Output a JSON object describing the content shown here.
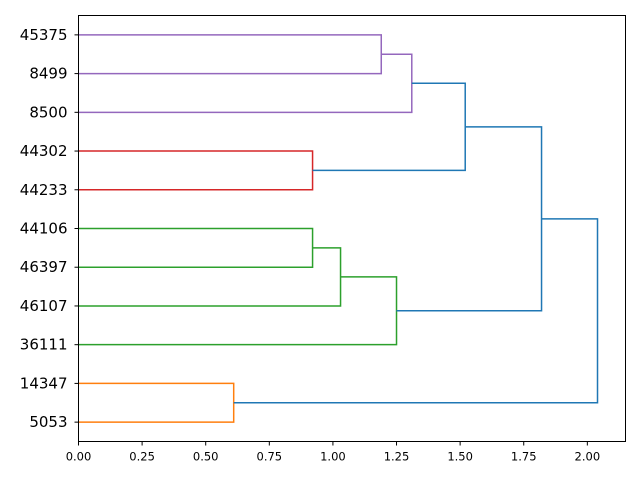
{
  "chart_data": {
    "type": "dendrogram",
    "orientation": "horizontal",
    "title": "",
    "xlabel": "",
    "ylabel": "",
    "xlim": [
      0,
      2.15
    ],
    "xticks": [
      "0.00",
      "0.25",
      "0.50",
      "0.75",
      "1.00",
      "1.25",
      "1.50",
      "1.75",
      "2.00"
    ],
    "xtick_values": [
      0,
      0.25,
      0.5,
      0.75,
      1.0,
      1.25,
      1.5,
      1.75,
      2.0
    ],
    "leaves": [
      "45375",
      "8499",
      "8500",
      "44302",
      "44233",
      "44106",
      "46397",
      "46107",
      "36111",
      "14347",
      "5053"
    ],
    "grid": false,
    "colors": {
      "purple": "#9467bd",
      "red": "#d62728",
      "green": "#2ca02c",
      "orange": "#ff7f0e",
      "blue": "#1f77b4"
    },
    "merges": [
      {
        "id": "m1",
        "a": "45375",
        "b": "8499",
        "height": 1.19,
        "color": "purple"
      },
      {
        "id": "m2",
        "a": "m1",
        "b": "8500",
        "height": 1.31,
        "color": "purple"
      },
      {
        "id": "m3",
        "a": "44302",
        "b": "44233",
        "height": 0.92,
        "color": "red"
      },
      {
        "id": "m4",
        "a": "m2",
        "b": "m3",
        "height": 1.52,
        "color": "blue"
      },
      {
        "id": "m5",
        "a": "44106",
        "b": "46397",
        "height": 0.92,
        "color": "green"
      },
      {
        "id": "m6",
        "a": "m5",
        "b": "46107",
        "height": 1.03,
        "color": "green"
      },
      {
        "id": "m7",
        "a": "m6",
        "b": "36111",
        "height": 1.25,
        "color": "green"
      },
      {
        "id": "m8",
        "a": "m4",
        "b": "m7",
        "height": 1.82,
        "color": "blue"
      },
      {
        "id": "m9",
        "a": "14347",
        "b": "5053",
        "height": 0.61,
        "color": "orange"
      },
      {
        "id": "m10",
        "a": "m8",
        "b": "m9",
        "height": 2.04,
        "color": "blue"
      }
    ]
  }
}
